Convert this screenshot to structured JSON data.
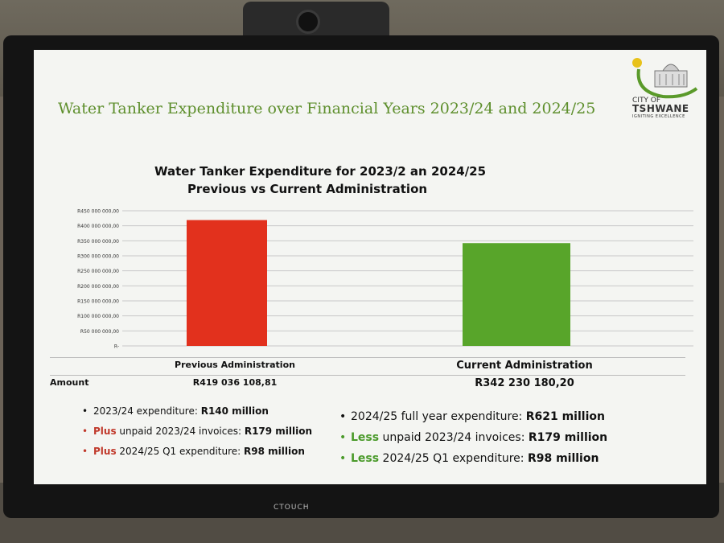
{
  "slide": {
    "title": "Water Tanker Expenditure over Financial Years 2023/24 and 2024/25"
  },
  "logo": {
    "line1": "CITY OF",
    "line2": "TSHWANE",
    "tagline": "IGNITING EXCELLENCE"
  },
  "monitor": {
    "brand": "CTOUCH"
  },
  "chart_data": {
    "type": "bar",
    "title": "Water Tanker Expenditure for 2023/2 an 2024/25",
    "subtitle": "Previous vs Current Administration",
    "categories": [
      "Previous Administration",
      "Current Administration"
    ],
    "values": [
      419036108.81,
      342230180.2
    ],
    "colors": [
      "#e2311d",
      "#58a52a"
    ],
    "ylim": [
      0,
      450000000
    ],
    "yticks": [
      "R-",
      "R50 000 000,00",
      "R100 000 000,00",
      "R150 000 000,00",
      "R200 000 000,00",
      "R250 000 000,00",
      "R300 000 000,00",
      "R350 000 000,00",
      "R400 000 000,00",
      "R450 000 000,00"
    ],
    "grid": true,
    "table": {
      "row_label": "Amount",
      "values": [
        "R419 036 108,81",
        "R342 230 180,20"
      ]
    }
  },
  "left_bullets": [
    {
      "prefix": "",
      "text": "2023/24 expenditure: ",
      "value": "R140 million",
      "style": "plain"
    },
    {
      "prefix": "Plus",
      "text": " unpaid 2023/24 invoices: ",
      "value": "R179 million",
      "style": "red"
    },
    {
      "prefix": "Plus",
      "text": " 2024/25 Q1 expenditure: ",
      "value": "R98 million",
      "style": "red"
    }
  ],
  "right_bullets": [
    {
      "prefix": "",
      "text": "2024/25 full year expenditure: ",
      "value": "R621 million",
      "style": "plain"
    },
    {
      "prefix": "Less",
      "text": " unpaid 2023/24 invoices: ",
      "value": "R179 million",
      "style": "green"
    },
    {
      "prefix": "Less",
      "text": " 2024/25 Q1 expenditure: ",
      "value": "R98 million",
      "style": "green"
    }
  ]
}
